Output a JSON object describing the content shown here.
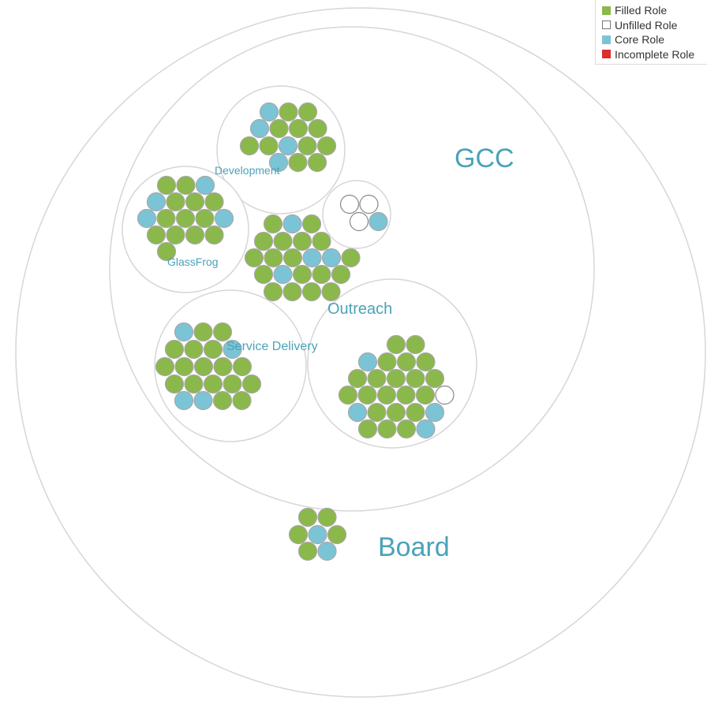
{
  "legend": {
    "items": [
      {
        "label": "Filled Role",
        "color": "#8ab84a",
        "border": "#8ab84a"
      },
      {
        "label": "Unfilled Role",
        "color": "#ffffff",
        "border": "#777777"
      },
      {
        "label": "Core Role",
        "color": "#7bc4d6",
        "border": "#7bc4d6"
      },
      {
        "label": "Incomplete Role",
        "color": "#dd2c2c",
        "border": "#dd2c2c"
      }
    ]
  },
  "colors": {
    "filled": "#8ab84a",
    "unfilled": "#ffffff",
    "core": "#7bc4d6",
    "circle_stroke": "#d6d6d6",
    "role_stroke": "#a8a8a8",
    "label": "#4aa3b8"
  },
  "circles": {
    "board_label": "Board",
    "gcc_label": "GCC",
    "development_label": "Development",
    "glassfrog_label": "GlassFrog",
    "outreach_label": "Outreach",
    "service_delivery_label": "Service Delivery"
  },
  "role_groups": {
    "development": [
      [
        "core",
        "filled",
        "filled"
      ],
      [
        "core",
        "filled",
        "filled",
        "filled"
      ],
      [
        "filled",
        "filled",
        "core",
        "filled",
        "filled"
      ],
      [
        "core",
        "filled",
        "filled"
      ]
    ],
    "glassfrog": [
      [
        "filled",
        "filled",
        "core"
      ],
      [
        "core",
        "filled",
        "filled",
        "filled"
      ],
      [
        "core",
        "filled",
        "filled",
        "filled",
        "core"
      ],
      [
        "filled",
        "filled",
        "filled",
        "filled"
      ],
      [
        "filled"
      ]
    ],
    "small_circle": [
      [
        "unfilled",
        "unfilled"
      ],
      [
        "unfilled",
        "core"
      ]
    ],
    "center_group": [
      [
        "filled",
        "core",
        "filled"
      ],
      [
        "filled",
        "filled",
        "filled",
        "filled"
      ],
      [
        "filled",
        "filled",
        "filled",
        "filled"
      ],
      [
        "filled",
        "filled",
        "filled",
        "core",
        "core",
        "filled"
      ],
      [
        "filled",
        "core",
        "filled",
        "filled",
        "filled"
      ],
      [
        "filled",
        "filled",
        "filled",
        "filled"
      ]
    ],
    "service_delivery": [
      [
        "core",
        "filled",
        "filled"
      ],
      [
        "filled",
        "filled",
        "filled",
        "core"
      ],
      [
        "filled",
        "filled",
        "filled",
        "filled",
        "filled"
      ],
      [
        "filled",
        "filled",
        "filled",
        "filled",
        "filled"
      ],
      [
        "core",
        "core",
        "filled",
        "filled"
      ]
    ],
    "outreach": [
      [
        "filled",
        "filled"
      ],
      [
        "core",
        "filled",
        "filled",
        "filled"
      ],
      [
        "filled",
        "filled",
        "filled",
        "filled",
        "filled"
      ],
      [
        "filled",
        "filled",
        "filled",
        "filled",
        "filled",
        "unfilled"
      ],
      [
        "core",
        "filled",
        "filled",
        "filled",
        "core"
      ],
      [
        "filled",
        "filled",
        "filled",
        "core"
      ]
    ],
    "board": [
      [
        "filled",
        "filled"
      ],
      [
        "filled",
        "core",
        "filled"
      ],
      [
        "filled",
        "core"
      ]
    ]
  }
}
